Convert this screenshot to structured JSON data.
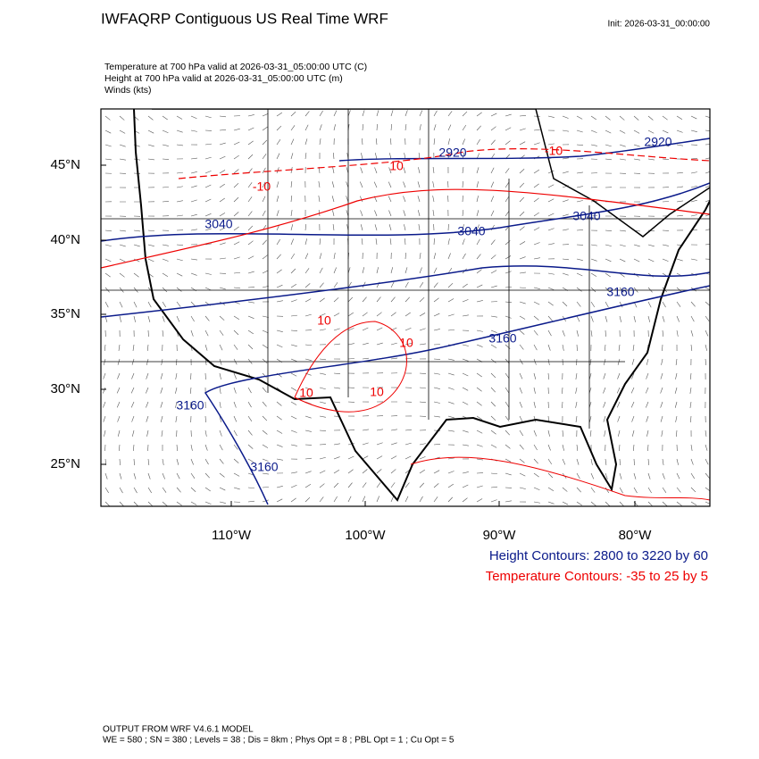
{
  "header": {
    "title": "IWFAQRP Contiguous US Real Time WRF",
    "init": "Init: 2026-03-31_00:00:00"
  },
  "fields": [
    "Temperature at 700 hPa valid at 2026-03-31_05:00:00 UTC   (C)",
    "Height at 700 hPa valid at 2026-03-31_05:00:00 UTC   (m)",
    "Winds   (kts)"
  ],
  "map": {
    "lat_labels": [
      "45°N",
      "40°N",
      "35°N",
      "30°N",
      "25°N"
    ],
    "lon_labels": [
      "110°W",
      "100°W",
      "90°W",
      "80°W"
    ],
    "height_contour_labels": [
      "2920",
      "2920",
      "3040",
      "3040",
      "3040",
      "3160",
      "3160",
      "3160",
      "3160"
    ],
    "temperature_contour_labels": [
      "10",
      "-10",
      "-10",
      "10",
      "10",
      "10",
      "10"
    ]
  },
  "legend": {
    "height": "Height Contours: 2800 to 3220 by 60",
    "temperature": "Temperature Contours: -35 to 25 by 5"
  },
  "footer": {
    "model": "OUTPUT FROM WRF V4.6.1 MODEL",
    "settings": "WE = 580 ; SN = 380 ; Levels = 38 ; Dis = 8km ; Phys Opt = 8 ; PBL Opt = 1 ; Cu Opt = 5"
  }
}
